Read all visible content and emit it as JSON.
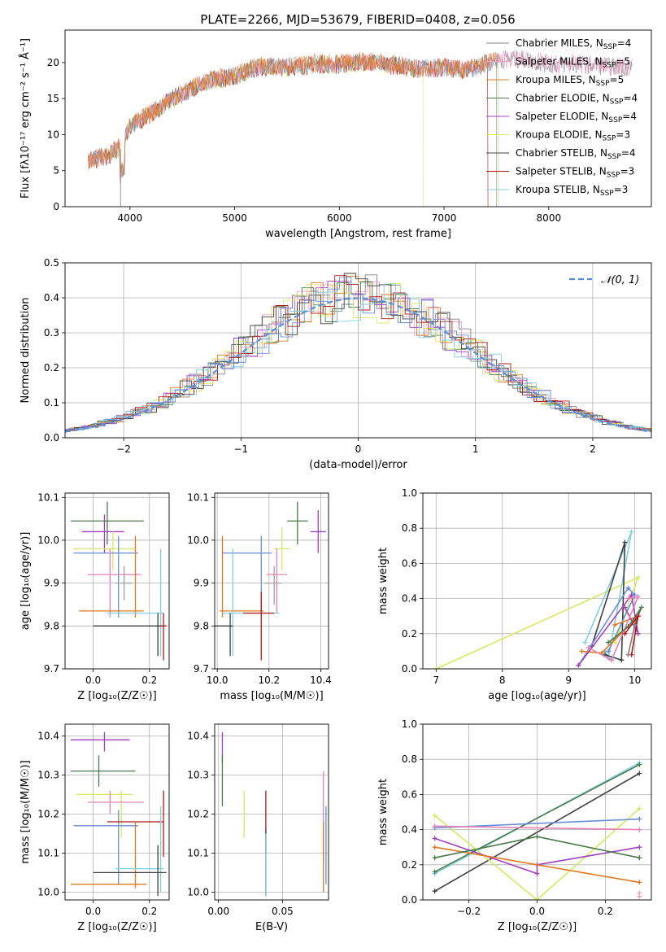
{
  "figure": {
    "title": "PLATE=2266, MJD=53679, FIBERID=0408, z=0.056"
  },
  "colors": {
    "Chabrier MILES": "#808080",
    "Salpeter MILES": "#f0a0c8",
    "Kroupa MILES": "#e07820",
    "Chabrier ELODIE": "#4a7a4a",
    "Salpeter ELODIE": "#a040c0",
    "Kroupa ELODIE": "#d8e860",
    "Chabrier STELIB": "#404040",
    "Salpeter STELIB": "#b01818",
    "Kroupa STELIB": "#80d0e0",
    "pink": "#e880b8",
    "blue": "#6a8ed8",
    "gray": "#a0a0a0"
  },
  "chart_data": [
    {
      "type": "line",
      "title": "PLATE=2266, MJD=53679, FIBERID=0408, z=0.056",
      "xlabel": "wavelength [Angstrom, rest frame]",
      "ylabel": "Flux [fλ10⁻¹⁷ erg cm⁻² s⁻¹ Å⁻¹]",
      "xlim": [
        3380,
        8980
      ],
      "ylim": [
        0,
        24.5
      ],
      "xticks": [
        "4000",
        "5000",
        "6000",
        "7000",
        "8000"
      ],
      "yticks": [
        "0",
        "5",
        "10",
        "15",
        "20"
      ],
      "legend_position": "right",
      "legend": [
        {
          "label": "Chabrier MILES, N",
          "sub": "SSP",
          "tail": "=4",
          "color": "Chabrier MILES"
        },
        {
          "label": "Salpeter MILES, N",
          "sub": "SSP",
          "tail": "=5",
          "color": "Salpeter MILES"
        },
        {
          "label": "Kroupa MILES, N",
          "sub": "SSP",
          "tail": "=5",
          "color": "Kroupa MILES"
        },
        {
          "label": "Chabrier ELODIE, N",
          "sub": "SSP",
          "tail": "=4",
          "color": "Chabrier ELODIE"
        },
        {
          "label": "Salpeter ELODIE, N",
          "sub": "SSP",
          "tail": "=4",
          "color": "Salpeter ELODIE"
        },
        {
          "label": "Kroupa ELODIE, N",
          "sub": "SSP",
          "tail": "=3",
          "color": "Kroupa ELODIE"
        },
        {
          "label": "Chabrier STELIB, N",
          "sub": "SSP",
          "tail": "=4",
          "color": "Chabrier STELIB"
        },
        {
          "label": "Salpeter STELIB, N",
          "sub": "SSP",
          "tail": "=3",
          "color": "Salpeter STELIB"
        },
        {
          "label": "Kroupa STELIB, N",
          "sub": "SSP",
          "tail": "=3",
          "color": "Kroupa STELIB"
        }
      ],
      "continuum": {
        "x": [
          3600,
          3800,
          3900,
          4000,
          4200,
          4400,
          4600,
          4800,
          5000,
          5200,
          5400,
          5600,
          5800,
          6000,
          6200,
          6400,
          6600,
          6800,
          7000,
          7200,
          7400,
          7600,
          7800,
          8000,
          8200,
          8400,
          8600,
          8800
        ],
        "y": [
          6.2,
          7.0,
          8.2,
          11.0,
          12.8,
          14.8,
          16.4,
          17.5,
          18.0,
          19.2,
          19.3,
          19.4,
          19.7,
          19.6,
          20.0,
          19.8,
          19.3,
          19.0,
          19.2,
          18.8,
          19.8,
          20.4,
          20.2,
          19.6,
          19.6,
          19.5,
          19.3,
          19.2
        ]
      },
      "series_extent": [
        {
          "color": "Kroupa ELODIE",
          "x": [
            3600,
            6800
          ]
        },
        {
          "color": "Salpeter STELIB",
          "x": [
            3600,
            7420
          ]
        },
        {
          "color": "Kroupa STELIB",
          "x": [
            3600,
            7520
          ]
        },
        {
          "color": "Chabrier MILES",
          "x": [
            3600,
            8800
          ]
        },
        {
          "color": "Salpeter MILES",
          "x": [
            3600,
            8800
          ]
        },
        {
          "color": "Kroupa MILES",
          "x": [
            3600,
            7500
          ]
        }
      ]
    },
    {
      "type": "histogram",
      "xlabel": "(data-model)/error",
      "ylabel": "Normed distribution",
      "xlim": [
        -2.5,
        2.5
      ],
      "ylim": [
        0,
        0.5
      ],
      "xticks": [
        "−2",
        "−1",
        "0",
        "1",
        "2"
      ],
      "yticks": [
        "0.0",
        "0.1",
        "0.2",
        "0.3",
        "0.4",
        "0.5"
      ],
      "legend_position": "top-right",
      "normal_curve": {
        "label": "𝒩(0, 1)",
        "mean": 0,
        "sigma": 1,
        "color": "#5b8ed6"
      }
    },
    {
      "type": "errorbar",
      "xlabel": "Z [log₁₀(Z/Z☉)]",
      "ylabel": "age  [log₁₀(age/yr)]",
      "xlim": [
        -0.1,
        0.27
      ],
      "ylim": [
        9.7,
        10.11
      ],
      "xticks": [
        "0.0",
        "0.2"
      ],
      "yticks": [
        "9.7",
        "9.8",
        "9.9",
        "10.0",
        "10.1"
      ],
      "points": [
        {
          "c": "Chabrier ELODIE",
          "x": 0.05,
          "y": 10.045,
          "xl": -0.08,
          "xh": 0.18,
          "yl": 9.99,
          "yh": 10.09
        },
        {
          "c": "Salpeter ELODIE",
          "x": 0.04,
          "y": 10.02,
          "xl": -0.04,
          "xh": 0.11,
          "yl": 9.97,
          "yh": 10.06
        },
        {
          "c": "Kroupa ELODIE",
          "x": 0.07,
          "y": 9.98,
          "xl": -0.07,
          "xh": 0.15,
          "yl": 9.93,
          "yh": 10.02
        },
        {
          "c": "blue",
          "x": 0.09,
          "y": 9.97,
          "xl": -0.07,
          "xh": 0.16,
          "yl": 9.82,
          "yh": 10.01
        },
        {
          "c": "pink",
          "x": 0.06,
          "y": 9.92,
          "xl": -0.02,
          "xh": 0.17,
          "yl": 9.82,
          "yh": 9.98
        },
        {
          "c": "Kroupa MILES",
          "x": 0.15,
          "y": 9.835,
          "xl": -0.05,
          "xh": 0.18,
          "yl": 9.82,
          "yh": 10.01
        },
        {
          "c": "Kroupa STELIB",
          "x": 0.24,
          "y": 9.83,
          "xl": 0.05,
          "xh": 0.25,
          "yl": 9.73,
          "yh": 9.98
        },
        {
          "c": "Chabrier STELIB",
          "x": 0.23,
          "y": 9.8,
          "xl": 0.0,
          "xh": 0.26,
          "yl": 9.73,
          "yh": 9.83
        },
        {
          "c": "Salpeter STELIB",
          "x": 0.25,
          "y": 9.8,
          "xl": 0.24,
          "xh": 0.26,
          "yl": 9.72,
          "yh": 9.83
        },
        {
          "c": "gray",
          "x": 0.11,
          "y": 9.9,
          "xl": 0.08,
          "xh": 0.14,
          "yl": 9.86,
          "yh": 9.94
        }
      ]
    },
    {
      "type": "errorbar",
      "xlabel": "mass [log₁₀(M/M☉)]",
      "ylabel": "",
      "xlim": [
        9.99,
        10.43
      ],
      "ylim": [
        9.7,
        10.11
      ],
      "xticks": [
        "10.0",
        "10.2",
        "10.4"
      ],
      "yticks": [
        "9.7",
        "9.8",
        "9.9",
        "10.0",
        "10.1"
      ],
      "points": [
        {
          "c": "Chabrier ELODIE",
          "x": 10.31,
          "y": 10.045,
          "xl": 10.27,
          "xh": 10.35,
          "yl": 9.99,
          "yh": 10.09
        },
        {
          "c": "Salpeter ELODIE",
          "x": 10.39,
          "y": 10.02,
          "xl": 10.36,
          "xh": 10.42,
          "yl": 9.97,
          "yh": 10.07
        },
        {
          "c": "Kroupa ELODIE",
          "x": 10.25,
          "y": 9.98,
          "xl": 10.22,
          "xh": 10.28,
          "yl": 9.93,
          "yh": 10.03
        },
        {
          "c": "blue",
          "x": 10.17,
          "y": 9.97,
          "xl": 10.02,
          "xh": 10.21,
          "yl": 9.82,
          "yh": 10.01
        },
        {
          "c": "pink",
          "x": 10.23,
          "y": 9.92,
          "xl": 10.19,
          "xh": 10.27,
          "yl": 9.83,
          "yh": 9.98
        },
        {
          "c": "Kroupa MILES",
          "x": 10.02,
          "y": 9.835,
          "xl": 10.01,
          "xh": 10.18,
          "yl": 9.82,
          "yh": 10.01
        },
        {
          "c": "Kroupa STELIB",
          "x": 10.06,
          "y": 9.83,
          "xl": 10.02,
          "xh": 10.24,
          "yl": 9.73,
          "yh": 9.98
        },
        {
          "c": "Chabrier STELIB",
          "x": 10.05,
          "y": 9.8,
          "xl": 9.99,
          "xh": 10.06,
          "yl": 9.73,
          "yh": 9.83
        },
        {
          "c": "Salpeter STELIB",
          "x": 10.17,
          "y": 9.83,
          "xl": 10.1,
          "xh": 10.22,
          "yl": 9.72,
          "yh": 9.88
        },
        {
          "c": "gray",
          "x": 10.22,
          "y": 9.9,
          "xl": 10.18,
          "xh": 10.25,
          "yl": 9.85,
          "yh": 9.94
        }
      ]
    },
    {
      "type": "line",
      "xlabel": "age  [log₁₀(age/yr)]",
      "ylabel": "mass weight",
      "xlim": [
        6.8,
        10.25
      ],
      "ylim": [
        0,
        1.0
      ],
      "xticks": [
        "7",
        "8",
        "9",
        "10"
      ],
      "yticks": [
        "0.0",
        "0.2",
        "0.4",
        "0.6",
        "0.8",
        "1.0"
      ],
      "series": [
        {
          "c": "Kroupa ELODIE",
          "x": [
            7.0,
            10.05,
            9.7
          ],
          "y": [
            0.0,
            0.52,
            0.15
          ]
        },
        {
          "c": "Kroupa STELIB",
          "x": [
            9.25,
            9.95,
            9.6,
            9.55
          ],
          "y": [
            0.15,
            0.78,
            0.06,
            0.1
          ]
        },
        {
          "c": "Chabrier STELIB",
          "x": [
            9.35,
            9.85,
            9.8,
            9.55
          ],
          "y": [
            0.13,
            0.72,
            0.05,
            0.08
          ]
        },
        {
          "c": "blue",
          "x": [
            9.15,
            9.9,
            10.0,
            9.6
          ],
          "y": [
            0.02,
            0.46,
            0.42,
            0.1
          ]
        },
        {
          "c": "Kroupa MILES",
          "x": [
            9.2,
            9.5,
            10.05,
            9.7
          ],
          "y": [
            0.1,
            0.09,
            0.3,
            0.25
          ]
        },
        {
          "c": "Salpeter ELODIE",
          "x": [
            9.15,
            9.95,
            10.05,
            9.85
          ],
          "y": [
            0.02,
            0.42,
            0.2,
            0.35
          ]
        },
        {
          "c": "pink",
          "x": [
            9.3,
            9.65,
            10.05,
            9.9
          ],
          "y": [
            0.12,
            0.05,
            0.41,
            0.4
          ]
        },
        {
          "c": "Chabrier ELODIE",
          "x": [
            9.6,
            9.9,
            10.1,
            10.0
          ],
          "y": [
            0.15,
            0.24,
            0.35,
            0.25
          ]
        },
        {
          "c": "Salpeter STELIB",
          "x": [
            9.85,
            10.05,
            9.95
          ],
          "y": [
            0.2,
            0.3,
            0.08
          ]
        },
        {
          "c": "Chabrier MILES",
          "x": [
            9.9,
            10.0
          ],
          "y": [
            0.08,
            0.25
          ]
        }
      ]
    },
    {
      "type": "errorbar",
      "xlabel": "Z [log₁₀(Z/Z☉)]",
      "ylabel": "mass [log₁₀(M/M☉)]",
      "xlim": [
        -0.1,
        0.27
      ],
      "ylim": [
        9.98,
        10.43
      ],
      "xticks": [
        "0.0",
        "0.2"
      ],
      "yticks": [
        "10.0",
        "10.1",
        "10.2",
        "10.3",
        "10.4"
      ],
      "points": [
        {
          "c": "Salpeter ELODIE",
          "x": 0.04,
          "y": 10.39,
          "xl": -0.08,
          "xh": 0.13,
          "yl": 10.36,
          "yh": 10.41
        },
        {
          "c": "Chabrier ELODIE",
          "x": 0.02,
          "y": 10.31,
          "xl": -0.08,
          "xh": 0.15,
          "yl": 10.27,
          "yh": 10.35
        },
        {
          "c": "Kroupa ELODIE",
          "x": 0.1,
          "y": 10.25,
          "xl": -0.06,
          "xh": 0.14,
          "yl": 10.14,
          "yh": 10.26
        },
        {
          "c": "pink",
          "x": 0.06,
          "y": 10.23,
          "xl": -0.02,
          "xh": 0.18,
          "yl": 10.2,
          "yh": 10.26
        },
        {
          "c": "blue",
          "x": 0.09,
          "y": 10.17,
          "xl": -0.07,
          "xh": 0.16,
          "yl": 10.02,
          "yh": 10.21
        },
        {
          "c": "Salpeter STELIB",
          "x": 0.25,
          "y": 10.18,
          "xl": 0.05,
          "xh": 0.25,
          "yl": 10.09,
          "yh": 10.26
        },
        {
          "c": "Kroupa MILES",
          "x": 0.15,
          "y": 10.02,
          "xl": -0.08,
          "xh": 0.19,
          "yl": 10.01,
          "yh": 10.18
        },
        {
          "c": "Kroupa STELIB",
          "x": 0.24,
          "y": 10.06,
          "xl": 0.08,
          "xh": 0.25,
          "yl": 10.0,
          "yh": 10.22
        },
        {
          "c": "Chabrier STELIB",
          "x": 0.23,
          "y": 10.05,
          "xl": 0.0,
          "xh": 0.26,
          "yl": 9.99,
          "yh": 10.12
        }
      ]
    },
    {
      "type": "errorbar",
      "xlabel": "E(B-V)",
      "ylabel": "",
      "xlim": [
        -0.003,
        0.086
      ],
      "ylim": [
        9.98,
        10.43
      ],
      "xticks": [
        "0.00",
        "0.05"
      ],
      "yticks": [
        "10.0",
        "10.1",
        "10.2",
        "10.3",
        "10.4"
      ],
      "points": [
        {
          "c": "Salpeter ELODIE",
          "x": 0.003,
          "y": 10.39,
          "yl": 10.33,
          "yh": 10.41
        },
        {
          "c": "Chabrier ELODIE",
          "x": 0.003,
          "y": 10.31,
          "yl": 10.22,
          "yh": 10.35
        },
        {
          "c": "Kroupa ELODIE",
          "x": 0.02,
          "y": 10.25,
          "yl": 10.14,
          "yh": 10.26
        },
        {
          "c": "Salpeter STELIB",
          "x": 0.037,
          "y": 10.18,
          "yl": 10.1,
          "yh": 10.26
        },
        {
          "c": "Chabrier STELIB",
          "x": 0.037,
          "y": 10.05,
          "yl": 9.99,
          "yh": 10.16
        },
        {
          "c": "Kroupa STELIB",
          "x": 0.037,
          "y": 10.06,
          "yl": 9.99,
          "yh": 10.15
        },
        {
          "c": "pink",
          "x": 0.082,
          "y": 10.23,
          "yl": 10.08,
          "yh": 10.31
        },
        {
          "c": "Kroupa MILES",
          "x": 0.082,
          "y": 10.02,
          "yl": 10.0,
          "yh": 10.18
        },
        {
          "c": "blue",
          "x": 0.084,
          "y": 10.17,
          "yl": 10.02,
          "yh": 10.22
        }
      ]
    },
    {
      "type": "line",
      "xlabel": "Z [log₁₀(Z/Z☉)]",
      "ylabel": "mass weight",
      "xlim": [
        -0.335,
        0.335
      ],
      "ylim": [
        0,
        1.0
      ],
      "xticks": [
        "−0.2",
        "0.0",
        "0.2"
      ],
      "yticks": [
        "0.0",
        "0.2",
        "0.4",
        "0.6",
        "0.8",
        "1.0"
      ],
      "series": [
        {
          "c": "Kroupa STELIB",
          "x": [
            -0.3,
            0.3
          ],
          "y": [
            0.15,
            0.78
          ]
        },
        {
          "c": "Chabrier ELODIE",
          "x": [
            -0.3,
            0.3
          ],
          "y": [
            0.16,
            0.77
          ]
        },
        {
          "c": "Chabrier STELIB",
          "x": [
            -0.3,
            0.3
          ],
          "y": [
            0.05,
            0.72
          ]
        },
        {
          "c": "Kroupa ELODIE",
          "x": [
            -0.3,
            0.0,
            0.3
          ],
          "y": [
            0.48,
            0.0,
            0.52
          ]
        },
        {
          "c": "blue",
          "x": [
            -0.3,
            0.3
          ],
          "y": [
            0.41,
            0.46
          ]
        },
        {
          "c": "pink",
          "x": [
            -0.3,
            0.3
          ],
          "y": [
            0.42,
            0.4
          ]
        },
        {
          "c": "Salpeter ELODIE",
          "x": [
            -0.3,
            0.0,
            0.0,
            0.3
          ],
          "y": [
            0.35,
            0.15,
            0.2,
            0.3
          ]
        },
        {
          "c": "Kroupa MILES",
          "x": [
            -0.3,
            0.3
          ],
          "y": [
            0.3,
            0.1
          ]
        },
        {
          "c": "Chabrier ELODIE",
          "x": [
            -0.3,
            0.0,
            0.3
          ],
          "y": [
            0.24,
            0.36,
            0.24
          ]
        },
        {
          "c": "Salpeter MILES",
          "x": [
            0.3,
            0.3
          ],
          "y": [
            0.02,
            0.04
          ]
        }
      ]
    }
  ]
}
